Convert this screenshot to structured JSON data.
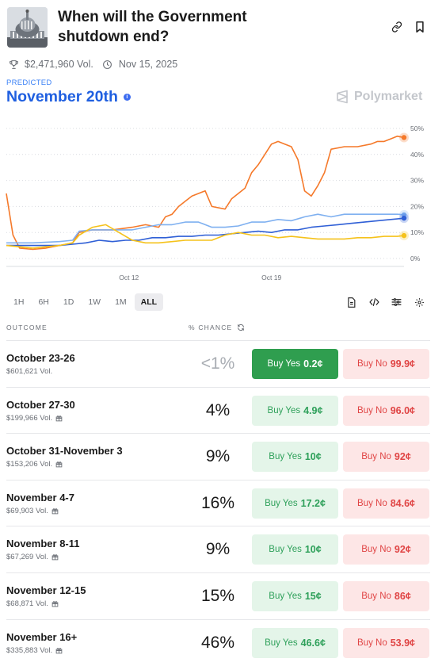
{
  "market": {
    "title": "When will the Government shutdown end?",
    "volume": "$2,471,960 Vol.",
    "date": "Nov 15, 2025",
    "icons": {
      "link": "link-icon",
      "bookmark": "bookmark-icon",
      "trophy": "trophy-icon",
      "clock": "clock-icon"
    }
  },
  "prediction": {
    "label": "PREDICTED",
    "value": "November 20th"
  },
  "brand": {
    "name": "Polymarket"
  },
  "ranges": [
    "1H",
    "6H",
    "1D",
    "1W",
    "1M",
    "ALL"
  ],
  "active_range": "ALL",
  "columns": {
    "outcome": "OUTCOME",
    "chance": "% CHANCE"
  },
  "outcomes": [
    {
      "name": "October 23-26",
      "volume": "$601,621 Vol.",
      "chance": "<1%",
      "yes_label": "Buy Yes",
      "yes_price": "0.2¢",
      "no_label": "Buy No",
      "no_price": "99.9¢"
    },
    {
      "name": "October 27-30",
      "volume": "$199,966 Vol.",
      "chance": "4%",
      "yes_label": "Buy Yes",
      "yes_price": "4.9¢",
      "no_label": "Buy No",
      "no_price": "96.0¢"
    },
    {
      "name": "October 31-November 3",
      "volume": "$153,206 Vol.",
      "chance": "9%",
      "yes_label": "Buy Yes",
      "yes_price": "10¢",
      "no_label": "Buy No",
      "no_price": "92¢"
    },
    {
      "name": "November 4-7",
      "volume": "$69,903 Vol.",
      "chance": "16%",
      "yes_label": "Buy Yes",
      "yes_price": "17.2¢",
      "no_label": "Buy No",
      "no_price": "84.6¢"
    },
    {
      "name": "November 8-11",
      "volume": "$67,269 Vol.",
      "chance": "9%",
      "yes_label": "Buy Yes",
      "yes_price": "10¢",
      "no_label": "Buy No",
      "no_price": "92¢"
    },
    {
      "name": "November 12-15",
      "volume": "$68,871 Vol.",
      "chance": "15%",
      "yes_label": "Buy Yes",
      "yes_price": "15¢",
      "no_label": "Buy No",
      "no_price": "86¢"
    },
    {
      "name": "November 16+",
      "volume": "$335,883 Vol.",
      "chance": "46%",
      "yes_label": "Buy Yes",
      "yes_price": "46.6¢",
      "no_label": "Buy No",
      "no_price": "53.9¢"
    }
  ],
  "colors": {
    "accent": "#1f5fe0",
    "yes": "#2f9e4f",
    "no": "#e04545",
    "orange": "#f5792a",
    "yellow": "#f5c21b",
    "blue": "#2f5fd6",
    "light_blue": "#7fb0f0"
  },
  "chart_data": {
    "type": "line",
    "xlabels": [
      "Oct 12",
      "Oct 19"
    ],
    "yticks": [
      "0%",
      "10%",
      "20%",
      "30%",
      "40%",
      "50%"
    ],
    "ylim": [
      0,
      50
    ],
    "grid": true,
    "series": [
      {
        "color": "#f5792a",
        "points": [
          [
            0,
            25
          ],
          [
            1,
            9
          ],
          [
            2,
            4
          ],
          [
            4,
            3.5
          ],
          [
            6,
            4
          ],
          [
            8,
            5
          ],
          [
            10,
            6
          ],
          [
            11,
            10
          ],
          [
            13,
            11
          ],
          [
            16,
            11
          ],
          [
            19,
            12
          ],
          [
            21,
            13
          ],
          [
            23,
            12
          ],
          [
            24,
            16
          ],
          [
            25,
            17
          ],
          [
            26,
            20
          ],
          [
            27,
            22
          ],
          [
            28,
            24
          ],
          [
            29,
            25
          ],
          [
            30,
            26
          ],
          [
            31,
            20
          ],
          [
            33,
            19
          ],
          [
            34,
            23
          ],
          [
            36,
            27
          ],
          [
            37,
            33
          ],
          [
            38,
            36
          ],
          [
            39,
            40
          ],
          [
            40,
            44
          ],
          [
            41,
            45
          ],
          [
            42,
            44
          ],
          [
            43,
            43
          ],
          [
            44,
            38
          ],
          [
            45,
            26
          ],
          [
            46,
            24
          ],
          [
            47,
            28
          ],
          [
            48,
            33
          ],
          [
            49,
            42
          ],
          [
            51,
            43
          ],
          [
            53,
            43
          ],
          [
            55,
            44
          ],
          [
            56,
            45
          ],
          [
            57,
            45
          ],
          [
            58,
            46
          ],
          [
            59,
            47
          ],
          [
            60,
            46.5
          ]
        ]
      },
      {
        "color": "#7fb0f0",
        "points": [
          [
            0,
            6
          ],
          [
            4,
            6
          ],
          [
            8,
            6.5
          ],
          [
            10,
            7
          ],
          [
            11,
            10.5
          ],
          [
            13,
            11
          ],
          [
            16,
            11
          ],
          [
            19,
            11
          ],
          [
            21,
            12
          ],
          [
            23,
            13
          ],
          [
            25,
            13
          ],
          [
            27,
            14
          ],
          [
            29,
            14
          ],
          [
            31,
            12
          ],
          [
            33,
            12
          ],
          [
            35,
            12.5
          ],
          [
            37,
            14
          ],
          [
            39,
            14
          ],
          [
            41,
            15
          ],
          [
            43,
            14.5
          ],
          [
            45,
            16
          ],
          [
            47,
            17
          ],
          [
            49,
            16
          ],
          [
            51,
            17
          ],
          [
            53,
            17
          ],
          [
            55,
            17
          ],
          [
            57,
            17
          ],
          [
            59,
            17
          ],
          [
            60,
            16.8
          ]
        ]
      },
      {
        "color": "#2f5fd6",
        "points": [
          [
            0,
            5
          ],
          [
            4,
            5
          ],
          [
            8,
            5
          ],
          [
            10,
            5.5
          ],
          [
            12,
            6
          ],
          [
            14,
            7
          ],
          [
            16,
            6.5
          ],
          [
            18,
            7
          ],
          [
            20,
            7
          ],
          [
            22,
            8
          ],
          [
            24,
            8
          ],
          [
            26,
            8.5
          ],
          [
            28,
            8.5
          ],
          [
            30,
            9
          ],
          [
            32,
            9
          ],
          [
            34,
            9.5
          ],
          [
            36,
            10
          ],
          [
            38,
            10.5
          ],
          [
            40,
            10
          ],
          [
            42,
            11
          ],
          [
            44,
            11
          ],
          [
            46,
            12
          ],
          [
            48,
            12.5
          ],
          [
            50,
            13
          ],
          [
            52,
            13.5
          ],
          [
            54,
            14
          ],
          [
            56,
            14.5
          ],
          [
            58,
            15
          ],
          [
            60,
            15.5
          ]
        ]
      },
      {
        "color": "#f5c21b",
        "points": [
          [
            0,
            5
          ],
          [
            4,
            4
          ],
          [
            8,
            5
          ],
          [
            10,
            6
          ],
          [
            11,
            9
          ],
          [
            13,
            12
          ],
          [
            15,
            13
          ],
          [
            17,
            10
          ],
          [
            19,
            7
          ],
          [
            21,
            6
          ],
          [
            23,
            6
          ],
          [
            25,
            6.5
          ],
          [
            27,
            7
          ],
          [
            29,
            7
          ],
          [
            31,
            7
          ],
          [
            33,
            9
          ],
          [
            35,
            10
          ],
          [
            37,
            9
          ],
          [
            39,
            9
          ],
          [
            41,
            8
          ],
          [
            43,
            8.5
          ],
          [
            45,
            8
          ],
          [
            47,
            7.5
          ],
          [
            49,
            7.5
          ],
          [
            51,
            7.5
          ],
          [
            53,
            8
          ],
          [
            55,
            8
          ],
          [
            57,
            8.5
          ],
          [
            59,
            8.5
          ],
          [
            60,
            8.8
          ]
        ]
      }
    ]
  }
}
